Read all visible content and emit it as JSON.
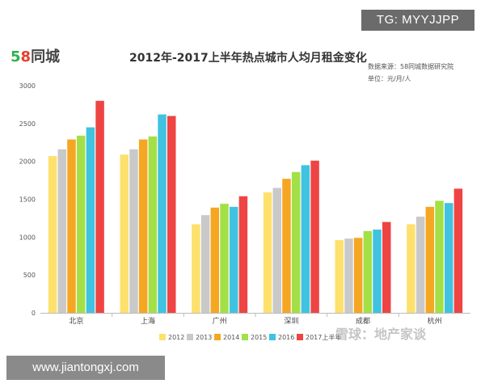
{
  "overlay": {
    "tg_text": "TG: MYYJJPP",
    "url_text": "www.jiantongxj.com",
    "watermark_text": "雪球：地产家谈"
  },
  "brand": {
    "digit5": "5",
    "digit8": "8",
    "name": "同城"
  },
  "header": {
    "title": "2012年-2017上半年热点城市人均月租金变化",
    "source": "数据来源：58同城数据研究院",
    "unit": "单位：元/月/人"
  },
  "chart_data": {
    "type": "bar",
    "title": "2012年-2017上半年热点城市人均月租金变化",
    "categories": [
      "北京",
      "上海",
      "广州",
      "深圳",
      "成都",
      "杭州"
    ],
    "y_ticks": [
      "0",
      "500",
      "1000",
      "1500",
      "2000",
      "2500",
      "3000"
    ],
    "ylim": [
      0,
      3000
    ],
    "grid": false,
    "legend_position": "bottom",
    "series": [
      {
        "name": "2012",
        "color": "#fde16c",
        "values": [
          2070,
          2090,
          1170,
          1590,
          960,
          1170
        ]
      },
      {
        "name": "2013",
        "color": "#c9c9c9",
        "values": [
          2160,
          2160,
          1290,
          1650,
          980,
          1270
        ]
      },
      {
        "name": "2014",
        "color": "#f5a623",
        "values": [
          2290,
          2290,
          1390,
          1770,
          990,
          1400
        ]
      },
      {
        "name": "2015",
        "color": "#a3e048",
        "values": [
          2340,
          2330,
          1440,
          1860,
          1080,
          1480
        ]
      },
      {
        "name": "2016",
        "color": "#3fc3e0",
        "values": [
          2450,
          2620,
          1400,
          1950,
          1100,
          1450
        ]
      },
      {
        "name": "2017上半年",
        "color": "#ef4444",
        "values": [
          2800,
          2600,
          1540,
          2010,
          1200,
          1640
        ]
      }
    ]
  }
}
